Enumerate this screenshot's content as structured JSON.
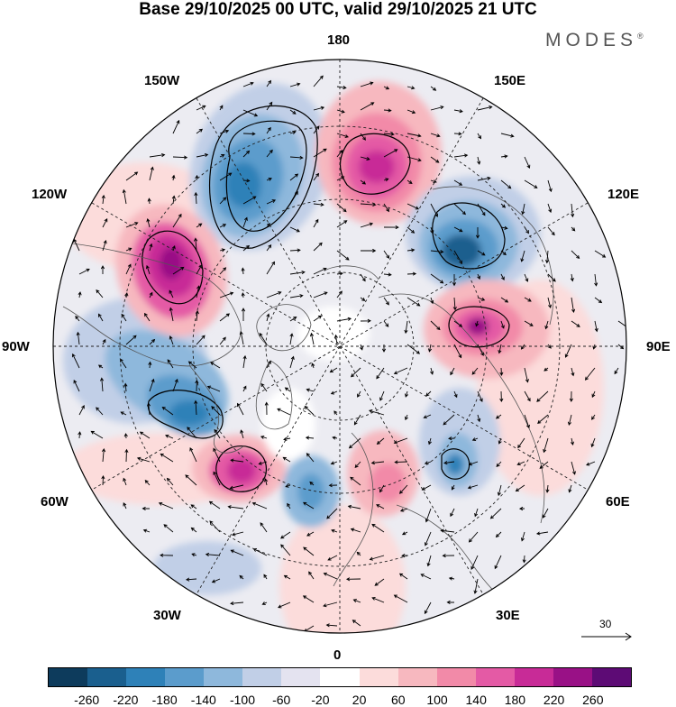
{
  "title": "Base 29/10/2025 00 UTC, valid 29/10/2025 21 UTC",
  "brand": {
    "text": "MODES",
    "mark": "®"
  },
  "map": {
    "projection": "north-polar-stereographic",
    "lon_labels": {
      "top": "180",
      "bottom": "0",
      "left": "90W",
      "right": "90E",
      "upper_left_inner": "150W",
      "upper_right_inner": "150E",
      "upper_left_outer": "120W",
      "upper_right_outer": "120E",
      "lower_left_outer": "60W",
      "lower_right_outer": "60E",
      "lower_left_inner": "30W",
      "lower_right_inner": "30E"
    },
    "reference_vector": {
      "label": "30",
      "icon": "arrow-right-icon"
    }
  },
  "colorbar": {
    "colors": [
      "#0d3b5c",
      "#1a5f8e",
      "#2e81b8",
      "#5b9ccc",
      "#8eb8dc",
      "#c1cfe7",
      "#e4e3f0",
      "#ffffff",
      "#fcdcdb",
      "#f7b8bf",
      "#f28aa8",
      "#e45aa5",
      "#c82b97",
      "#991186",
      "#5d0b75"
    ],
    "tick_labels": [
      "-260",
      "-220",
      "-180",
      "-140",
      "-100",
      "-60",
      "-20",
      "20",
      "60",
      "100",
      "140",
      "180",
      "220",
      "260"
    ]
  },
  "anomaly_centers": [
    {
      "sign": "negative",
      "peak": -200
    },
    {
      "sign": "positive",
      "peak": 220
    },
    {
      "sign": "negative",
      "peak": -200
    },
    {
      "sign": "positive",
      "peak": 230
    },
    {
      "sign": "positive",
      "peak": 200
    },
    {
      "sign": "negative",
      "peak": -160
    },
    {
      "sign": "positive",
      "peak": 180
    },
    {
      "sign": "negative",
      "peak": -120
    },
    {
      "sign": "positive",
      "peak": 140
    },
    {
      "sign": "negative",
      "peak": -140
    }
  ]
}
